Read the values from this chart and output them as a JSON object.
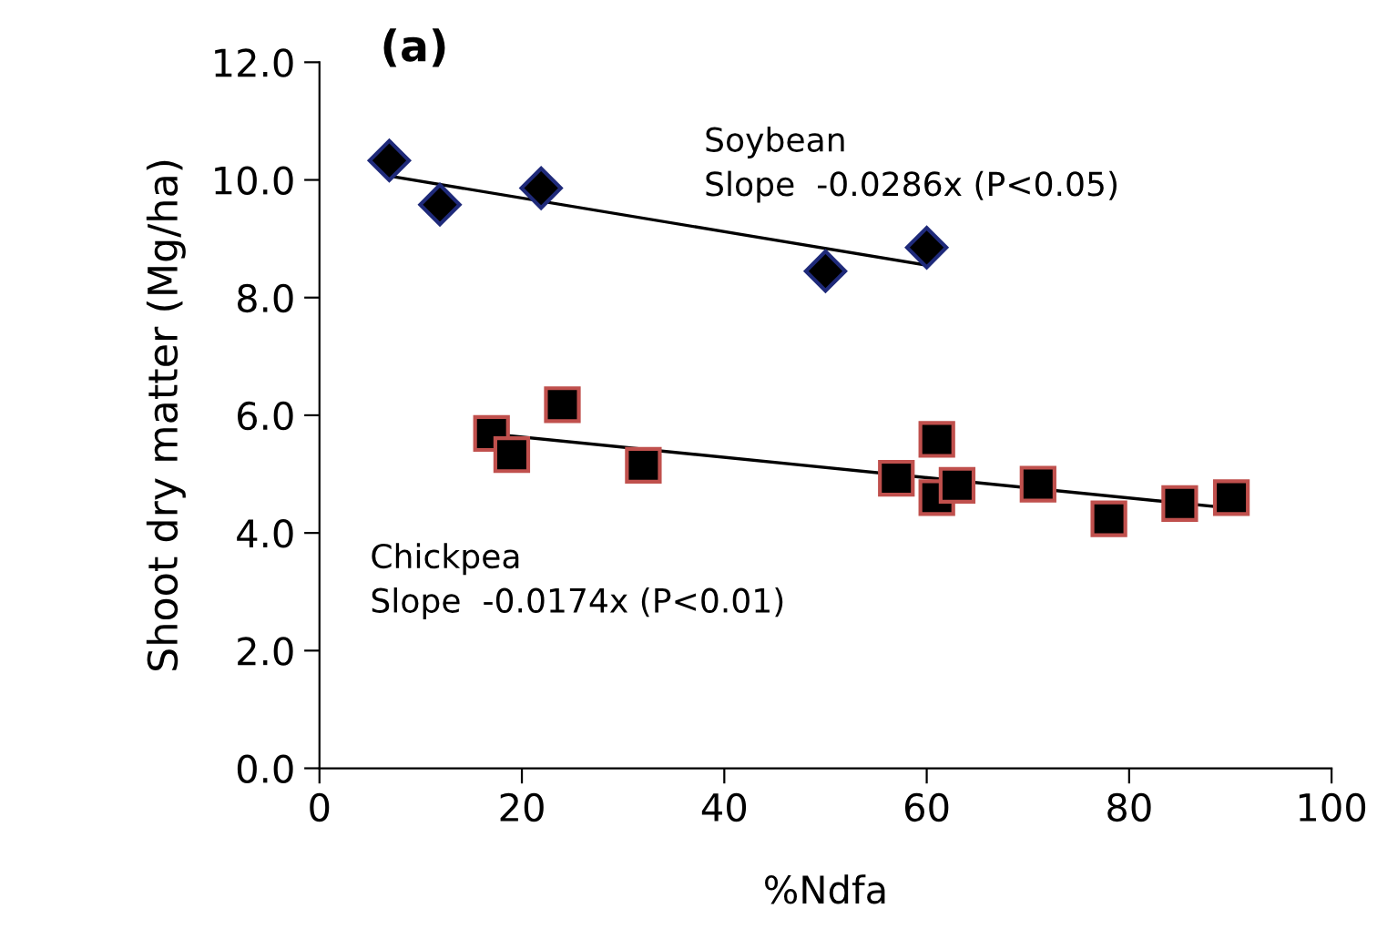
{
  "chart_data": {
    "type": "scatter",
    "title": "(a)",
    "xlabel": "%Ndfa",
    "ylabel": "Shoot dry matter (Mg/ha)",
    "xlim": [
      0,
      100
    ],
    "xticks": [
      0,
      20,
      40,
      60,
      80,
      100
    ],
    "ylim": [
      0,
      12
    ],
    "yticks": [
      {
        "value": 0,
        "label": "0.0"
      },
      {
        "value": 2,
        "label": "2.0"
      },
      {
        "value": 4,
        "label": "4.0"
      },
      {
        "value": 6,
        "label": "6.0"
      },
      {
        "value": 8,
        "label": "8.0"
      },
      {
        "value": 10,
        "label": "10.0"
      },
      {
        "value": 12,
        "label": "12.0"
      }
    ],
    "grid": false,
    "legend": false,
    "annotations": [
      "Slope  -0.0286x (P<0.05)",
      "Slope  -0.0174x (P<0.01)"
    ],
    "series": [
      {
        "name": "Soybean",
        "marker": "diamond",
        "color": "#000000",
        "x": [
          6.9,
          11.9,
          21.9,
          50.0,
          60.0
        ],
        "values": [
          10.33,
          9.58,
          9.86,
          8.45,
          8.85
        ]
      },
      {
        "name": "Chickpea",
        "marker": "square",
        "color": "#000000",
        "x": [
          17.0,
          19.0,
          24.0,
          32.0,
          57.0,
          61.0,
          61.0,
          63.0,
          71.0,
          78.0,
          85.0,
          90.1
        ],
        "values": [
          5.69,
          5.33,
          6.18,
          5.15,
          4.93,
          5.59,
          4.6,
          4.81,
          4.83,
          4.24,
          4.5,
          4.6
        ]
      },
      {
        "type": "line",
        "marker": "none",
        "line_style": "solid",
        "color": "#000000",
        "x": [
          7.1,
          60.0
        ],
        "values": [
          10.06,
          8.55
        ]
      },
      {
        "type": "line",
        "marker": "none",
        "line_style": "solid",
        "color": "#000000",
        "x": [
          18.3,
          90.1
        ],
        "values": [
          5.66,
          4.42
        ]
      }
    ]
  }
}
